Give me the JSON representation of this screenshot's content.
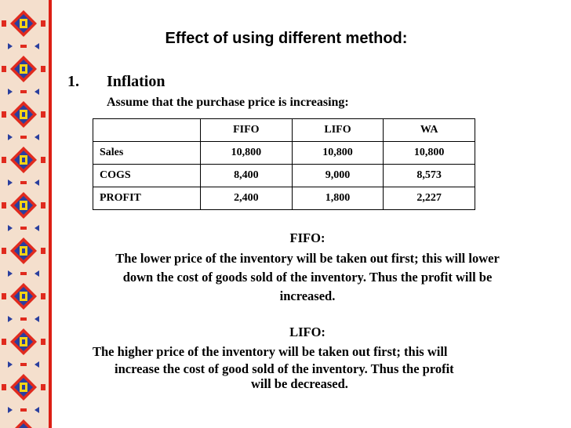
{
  "title": "Effect of using different method:",
  "section": {
    "number": "1.",
    "heading": "Inflation",
    "subheading": "Assume that the purchase price is increasing:"
  },
  "table": {
    "headers": [
      "",
      "FIFO",
      "LIFO",
      "WA"
    ],
    "rows": [
      [
        "Sales",
        "10,800",
        "10,800",
        "10,800"
      ],
      [
        "COGS",
        "8,400",
        "9,000",
        "8,573"
      ],
      [
        "PROFIT",
        "2,400",
        "1,800",
        "2,227"
      ]
    ]
  },
  "fifo": {
    "label": "FIFO:",
    "line1": "The lower price of the inventory will be taken out first; this will lower",
    "line2": "down the cost of goods sold of the inventory.  Thus the profit will be",
    "line3": "increased."
  },
  "lifo": {
    "label": "LIFO:",
    "line1": "The higher price of the inventory will be taken out first; this will",
    "line2": "increase the cost of good sold of the inventory.  Thus the profit",
    "line3": "will be decreased."
  },
  "colors": {
    "border_background": "#f4dfcd",
    "motif_red": "#e02a1e",
    "motif_blue": "#2a3f9e",
    "motif_yellow": "#f5d316",
    "divider": "#dc1f14"
  }
}
